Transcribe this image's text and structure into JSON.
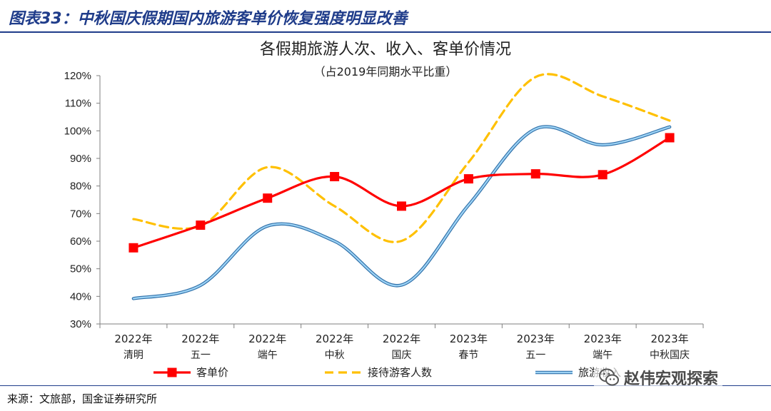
{
  "header": {
    "figure_title": "图表33：中秋国庆假期国内旅游客单价恢复强度明显改善"
  },
  "chart_data": {
    "type": "line",
    "title": "各假期旅游人次、收入、客单价情况",
    "subtitle": "（占2019年同期水平比重）",
    "x_labels": [
      [
        "2022年",
        "清明"
      ],
      [
        "2022年",
        "五一"
      ],
      [
        "2022年",
        "端午"
      ],
      [
        "2022年",
        "中秋"
      ],
      [
        "2022年",
        "国庆"
      ],
      [
        "2023年",
        "春节"
      ],
      [
        "2023年",
        "五一"
      ],
      [
        "2023年",
        "端午"
      ],
      [
        "2023年",
        "中秋国庆"
      ]
    ],
    "y_ticks": [
      "30%",
      "40%",
      "50%",
      "60%",
      "70%",
      "80%",
      "90%",
      "100%",
      "110%",
      "120%"
    ],
    "ylim": [
      30,
      120
    ],
    "series": [
      {
        "name": "客单价",
        "values": [
          57.6,
          65.8,
          75.6,
          83.4,
          72.7,
          82.6,
          84.4,
          84.1,
          97.5
        ],
        "color": "#ff0000",
        "style": "solid",
        "marker": "square"
      },
      {
        "name": "接待游客人数",
        "values": [
          68,
          65.5,
          86.8,
          72.7,
          60.1,
          88.6,
          119.5,
          112.5,
          103.7
        ],
        "color": "#ffc000",
        "style": "dashed",
        "marker": "none"
      },
      {
        "name": "旅游收入",
        "values": [
          39.2,
          44,
          65.5,
          60,
          44.1,
          73.1,
          100.7,
          94.9,
          101.4
        ],
        "color": "#5b9bd5",
        "style": "solid",
        "marker": "none"
      }
    ],
    "legend": {
      "position": "bottom",
      "items": [
        "客单价",
        "接待游客人数",
        "旅游收入"
      ]
    },
    "grid": false
  },
  "footer": {
    "source": "来源：文旅部，国金证券研究所"
  },
  "watermark": {
    "text": "赵伟宏观探索",
    "icon": "wechat-icon"
  }
}
